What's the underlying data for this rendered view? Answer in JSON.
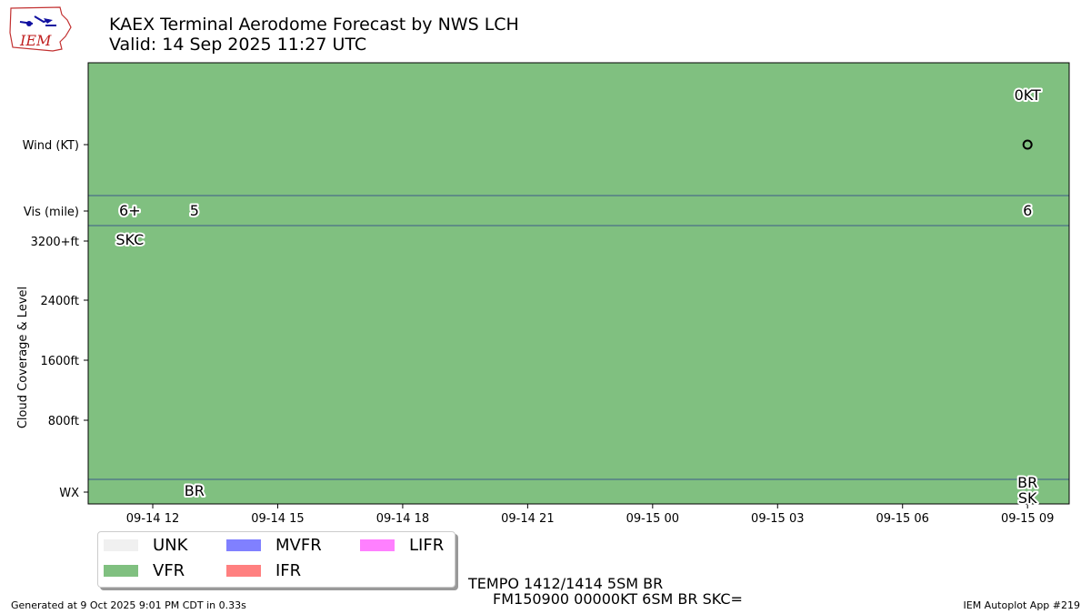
{
  "header": {
    "title_line1": "KAEX Terminal Aerodome Forecast by NWS LCH",
    "title_line2": "Valid: 14 Sep 2025 11:27 UTC",
    "logo_text": "IEM"
  },
  "chart_data": {
    "type": "area",
    "y_rows": [
      "Wind (KT)",
      "Vis (mile)",
      "3200+ft",
      "2400ft",
      "1600ft",
      "800ft",
      "WX"
    ],
    "ylabel": "Cloud Coverage & Level",
    "x_ticks": [
      "09-14 12",
      "09-14 15",
      "09-14 18",
      "09-14 21",
      "09-15 00",
      "09-15 03",
      "09-15 06",
      "09-15 09"
    ],
    "x_range": [
      "2025-09-14 10:27",
      "2025-09-15 10:00"
    ],
    "background_category": "VFR",
    "category_colors": {
      "UNK": "#f0f0f0",
      "VFR": "#80c080",
      "MVFR": "#8080ff",
      "IFR": "#ff8080",
      "LIFR": "#ff80ff"
    },
    "wind_labels": [
      {
        "time": "2025-09-15 09:00",
        "text": "0KT"
      }
    ],
    "vis_labels": [
      {
        "time": "2025-09-14 11:27",
        "text": "6+"
      },
      {
        "time": "2025-09-14 13:00",
        "text": "5"
      },
      {
        "time": "2025-09-15 09:00",
        "text": "6"
      }
    ],
    "cloud_labels": [
      {
        "time": "2025-09-14 11:27",
        "text": "SKC"
      }
    ],
    "wx_labels": [
      {
        "time": "2025-09-14 13:00",
        "text": "BR"
      },
      {
        "time": "2025-09-15 09:00",
        "text": "BR"
      },
      {
        "time": "2025-09-15 09:00",
        "text": "SK"
      }
    ]
  },
  "legend": {
    "items": [
      {
        "label": "UNK",
        "color": "#f0f0f0"
      },
      {
        "label": "VFR",
        "color": "#80c080"
      },
      {
        "label": "MVFR",
        "color": "#8080ff"
      },
      {
        "label": "IFR",
        "color": "#ff8080"
      },
      {
        "label": "LIFR",
        "color": "#ff80ff"
      }
    ]
  },
  "taf_text": {
    "line1": "TEMPO 1412/1414 5SM BR",
    "line2": "FM150900 00000KT 6SM BR SKC="
  },
  "footer": {
    "generated": "Generated at 9 Oct 2025 9:01 PM CDT in 0.33s",
    "app": "IEM Autoplot App #219"
  }
}
